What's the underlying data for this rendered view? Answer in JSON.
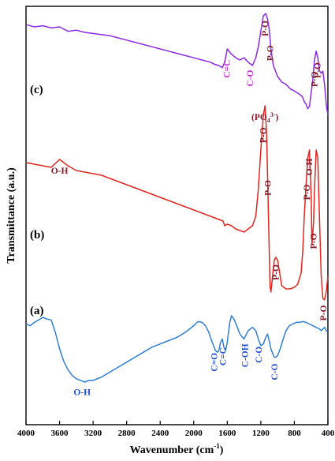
{
  "chart_data": {
    "type": "line",
    "xlabel": "Wavenumber (cm",
    "xlabel_sup": "-1",
    "xlabel_end": ")",
    "ylabel": "Transmittance (a.u.)",
    "xlim": [
      4000,
      400
    ],
    "xticks": [
      4000,
      3600,
      3200,
      2800,
      2400,
      2000,
      1600,
      1200,
      800,
      400
    ],
    "xtick_labels": [
      "4000",
      "3600",
      "3200",
      "2800",
      "2400",
      "2000",
      "1600",
      "1200",
      "800",
      "400"
    ],
    "yticks": [],
    "series": [
      {
        "name": "(c)",
        "color": "#8b2be2",
        "x": [
          4000,
          3900,
          3800,
          3700,
          3600,
          3500,
          3400,
          3300,
          3200,
          3100,
          3000,
          2900,
          2800,
          2700,
          2600,
          2500,
          2400,
          2300,
          2200,
          2100,
          2000,
          1900,
          1800,
          1750,
          1700,
          1660,
          1630,
          1600,
          1560,
          1500,
          1450,
          1400,
          1350,
          1300,
          1260,
          1230,
          1200,
          1170,
          1140,
          1120,
          1100,
          1080,
          1050,
          1000,
          950,
          900,
          850,
          800,
          760,
          720,
          700,
          680,
          660,
          640,
          620,
          600,
          580,
          560,
          540,
          520,
          500,
          480,
          460,
          440,
          420,
          400
        ],
        "y": [
          0.92,
          0.9,
          0.91,
          0.89,
          0.9,
          0.86,
          0.87,
          0.85,
          0.84,
          0.83,
          0.82,
          0.8,
          0.78,
          0.76,
          0.74,
          0.72,
          0.7,
          0.68,
          0.66,
          0.64,
          0.62,
          0.6,
          0.58,
          0.56,
          0.55,
          0.53,
          0.58,
          0.7,
          0.66,
          0.62,
          0.6,
          0.62,
          0.58,
          0.55,
          0.62,
          0.72,
          0.86,
          1.0,
          1.02,
          0.97,
          0.88,
          0.7,
          0.55,
          0.45,
          0.4,
          0.38,
          0.34,
          0.32,
          0.3,
          0.28,
          0.26,
          0.22,
          0.2,
          0.16,
          0.18,
          0.3,
          0.42,
          0.6,
          0.68,
          0.62,
          0.5,
          0.48,
          0.5,
          0.38,
          0.2,
          0.1
        ]
      },
      {
        "name": "(b)",
        "color": "#e0261f",
        "x": [
          4000,
          3900,
          3800,
          3700,
          3600,
          3500,
          3400,
          3300,
          3200,
          3100,
          3000,
          2900,
          2800,
          2700,
          2600,
          2500,
          2400,
          2300,
          2200,
          2100,
          2000,
          1900,
          1800,
          1700,
          1650,
          1630,
          1600,
          1550,
          1500,
          1450,
          1400,
          1350,
          1300,
          1260,
          1230,
          1200,
          1170,
          1150,
          1130,
          1110,
          1090,
          1080,
          1060,
          1040,
          1020,
          1000,
          950,
          900,
          850,
          800,
          760,
          720,
          700,
          680,
          660,
          640,
          620,
          600,
          590,
          570,
          560,
          540,
          520,
          500,
          480,
          460,
          440,
          420,
          400
        ],
        "y": [
          0.92,
          0.91,
          0.9,
          0.89,
          0.94,
          0.9,
          0.87,
          0.86,
          0.85,
          0.84,
          0.82,
          0.8,
          0.78,
          0.76,
          0.74,
          0.72,
          0.7,
          0.68,
          0.66,
          0.64,
          0.62,
          0.6,
          0.58,
          0.56,
          0.55,
          0.52,
          0.53,
          0.52,
          0.5,
          0.49,
          0.48,
          0.5,
          0.52,
          0.58,
          0.75,
          1.0,
          1.22,
          1.28,
          1.1,
          0.6,
          0.14,
          0.1,
          0.2,
          0.3,
          0.32,
          0.3,
          0.14,
          0.12,
          0.12,
          0.13,
          0.15,
          0.22,
          0.36,
          0.6,
          0.78,
          0.95,
          1.0,
          0.72,
          0.4,
          0.55,
          0.75,
          1.0,
          0.95,
          0.55,
          0.2,
          0.06,
          0.05,
          0.1,
          0.2
        ]
      },
      {
        "name": "(a)",
        "color": "#2f7fd6",
        "x": [
          4000,
          3950,
          3900,
          3850,
          3800,
          3750,
          3700,
          3650,
          3600,
          3550,
          3500,
          3450,
          3400,
          3350,
          3300,
          3250,
          3200,
          3150,
          3100,
          3000,
          2900,
          2800,
          2700,
          2600,
          2500,
          2400,
          2300,
          2200,
          2100,
          2000,
          1950,
          1900,
          1860,
          1820,
          1780,
          1740,
          1720,
          1700,
          1680,
          1660,
          1640,
          1620,
          1600,
          1570,
          1550,
          1520,
          1480,
          1450,
          1420,
          1400,
          1380,
          1350,
          1300,
          1260,
          1230,
          1200,
          1170,
          1140,
          1120,
          1100,
          1080,
          1060,
          1040,
          1020,
          1000,
          970,
          940,
          900,
          860,
          820,
          780,
          740,
          700,
          660,
          620,
          580,
          540,
          500,
          480,
          460,
          440,
          420,
          400
        ],
        "y": [
          0.9,
          0.88,
          0.92,
          0.95,
          0.98,
          0.96,
          0.95,
          0.8,
          0.6,
          0.45,
          0.35,
          0.28,
          0.24,
          0.22,
          0.2,
          0.22,
          0.22,
          0.24,
          0.26,
          0.32,
          0.38,
          0.44,
          0.5,
          0.56,
          0.62,
          0.66,
          0.7,
          0.74,
          0.8,
          0.88,
          0.93,
          0.92,
          0.88,
          0.8,
          0.68,
          0.58,
          0.56,
          0.58,
          0.68,
          0.72,
          0.62,
          0.58,
          0.68,
          0.92,
          1.0,
          0.96,
          0.86,
          0.78,
          0.74,
          0.72,
          0.76,
          0.82,
          0.86,
          0.82,
          0.72,
          0.64,
          0.66,
          0.74,
          0.78,
          0.7,
          0.6,
          0.55,
          0.5,
          0.5,
          0.52,
          0.6,
          0.7,
          0.82,
          0.88,
          0.9,
          0.92,
          0.92,
          0.93,
          0.92,
          0.9,
          0.88,
          0.86,
          0.84,
          0.82,
          0.84,
          0.86,
          0.82,
          0.8
        ]
      }
    ],
    "panel_labels": [
      {
        "text": "(c)",
        "series": 0
      },
      {
        "text": "(b)",
        "series": 1
      },
      {
        "text": "(a)",
        "series": 2
      }
    ],
    "annotations": [
      {
        "text": "C=C",
        "color": "#c42ad6",
        "x": 1610,
        "series": 0,
        "rotate": true
      },
      {
        "text": "C-O",
        "color": "#c42ad6",
        "x": 1330,
        "series": 0,
        "rotate": true
      },
      {
        "text": "P-O",
        "color": "#8b1b2a",
        "x": 1150,
        "series": 0,
        "rotate": true
      },
      {
        "text": "P-O",
        "color": "#8b1b2a",
        "x": 1090,
        "series": 0,
        "rotate": true
      },
      {
        "text": "P-O",
        "color": "#8b1b2a",
        "x": 565,
        "series": 0,
        "rotate": true
      },
      {
        "text": "P-O",
        "color": "#8b1b2a",
        "x": 525,
        "series": 0,
        "rotate": true
      },
      {
        "text": "O-H",
        "color": "#8b1b2a",
        "x": 3600,
        "series": 1,
        "rotate": false
      },
      {
        "text": "P-O",
        "color": "#8b1b2a",
        "x": 1025,
        "series": 1,
        "rotate": true
      },
      {
        "text": "P-O",
        "color": "#8b1b2a",
        "x": 1175,
        "series": 1,
        "rotate": true
      },
      {
        "text": "P-O",
        "color": "#8b1b2a",
        "x": 1120,
        "series": 1,
        "rotate": true
      },
      {
        "text": "(PO",
        "color": "#8b1b2a",
        "x": 1150,
        "series": 1,
        "rotate": false,
        "sup": "3-",
        "sub": "4",
        "end": ")"
      },
      {
        "text": "P-O",
        "color": "#8b1b2a",
        "x": 655,
        "series": 1,
        "rotate": true
      },
      {
        "text": "O-H",
        "color": "#8b1b2a",
        "x": 625,
        "series": 1,
        "rotate": true
      },
      {
        "text": "P-O",
        "color": "#8b1b2a",
        "x": 575,
        "series": 1,
        "rotate": true
      },
      {
        "text": "P-O",
        "color": "#8b1b2a",
        "x": 455,
        "series": 1,
        "rotate": true
      },
      {
        "text": "O-H",
        "color": "#1f4fd6",
        "x": 3330,
        "series": 2,
        "rotate": false
      },
      {
        "text": "C=O",
        "color": "#1f4fd6",
        "x": 1760,
        "series": 2,
        "rotate": true
      },
      {
        "text": "C=C",
        "color": "#1f4fd6",
        "x": 1655,
        "series": 2,
        "rotate": true
      },
      {
        "text": "C-OH",
        "color": "#1f4fd6",
        "x": 1390,
        "series": 2,
        "rotate": true
      },
      {
        "text": "C-O",
        "color": "#1f4fd6",
        "x": 1225,
        "series": 2,
        "rotate": true
      },
      {
        "text": "C-O",
        "color": "#1f4fd6",
        "x": 1040,
        "series": 2,
        "rotate": true
      }
    ]
  }
}
